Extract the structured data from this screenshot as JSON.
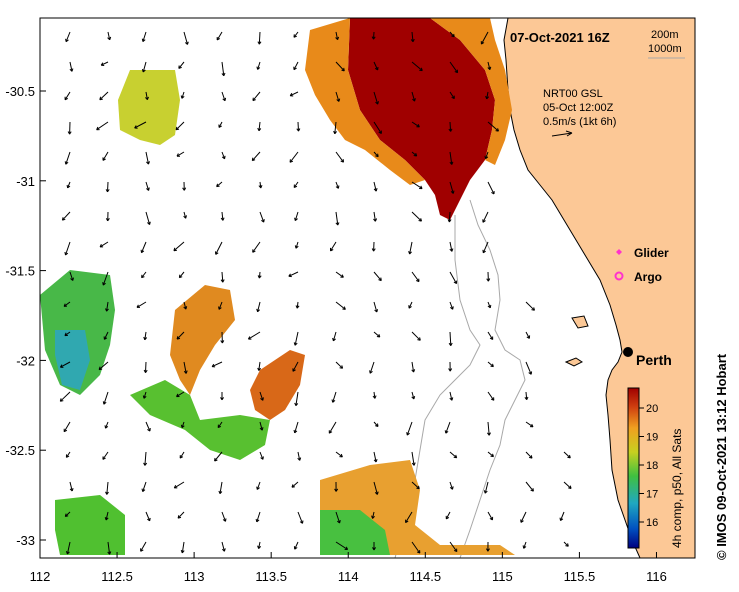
{
  "map": {
    "date_label": "07-Oct-2021 16Z",
    "isobath_labels": [
      "200m",
      "1000m"
    ],
    "current_source": "NRT00 GSL",
    "current_date": "05-Oct 12:00Z",
    "current_scale": "0.5m/s (1kt 6h)",
    "legend": [
      {
        "label": "Glider",
        "color": "#ff33cc",
        "icon": "diamond-icon"
      },
      {
        "label": "Argo",
        "color": "#ff33cc",
        "icon": "ring-icon"
      }
    ],
    "city": "Perth",
    "colorbar_label": "4h comp, p50, All Sats",
    "colorbar_ticks": [
      "16",
      "17",
      "18",
      "19",
      "20"
    ],
    "credit": "© IMOS 09-Oct-2021 13:12 Hobart",
    "x_ticks": [
      "112",
      "112.5",
      "113",
      "113.5",
      "114",
      "114.5",
      "115",
      "115.5",
      "116"
    ],
    "y_ticks": [
      "-30.5",
      "-31",
      "-31.5",
      "-32",
      "-32.5",
      "-33"
    ],
    "colors": {
      "land": "#fcc896",
      "sst_hot": "#a00000",
      "sst_orange": "#e88a1a",
      "sst_yellow": "#d8d020",
      "sst_green": "#50c030",
      "sst_cyan": "#30b0b0"
    }
  }
}
